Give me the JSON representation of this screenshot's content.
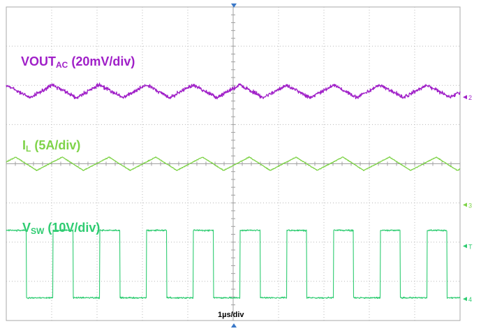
{
  "chart_data": {
    "type": "line",
    "title": "",
    "grid": true,
    "divisions": {
      "x": 10,
      "y": 8
    },
    "time_per_div_us": 1,
    "timebase_label": "1µs/div",
    "switching_period_div": 1.03,
    "series": [
      {
        "name": "VOUT",
        "name_sub": "AC",
        "scale_label": " (20mV/div)",
        "color": "#a020c8",
        "channel": "2",
        "waveform": "ripple_noisy",
        "center_div": 2.15,
        "amplitude_div": 0.16,
        "noise_div": 0.07
      },
      {
        "name": "I",
        "name_sub": "L",
        "scale_label": " (5A/div)",
        "color": "#7ed348",
        "channel": "",
        "waveform": "triangle",
        "center_div": 4.0,
        "amplitude_div": 0.17,
        "noise_div": 0.015
      },
      {
        "name": "V",
        "name_sub": "SW",
        "scale_label": " (10V/div)",
        "color": "#2ecc71",
        "channel": "4",
        "waveform": "square",
        "high_div": 5.7,
        "low_div": 7.42,
        "duty": 0.43,
        "noise_div": 0.03
      }
    ],
    "markers": [
      {
        "label": "2",
        "color": "#a020c8",
        "level_div": 2.3
      },
      {
        "label": "3",
        "color": "#7ed348",
        "level_div": 5.05
      },
      {
        "label": "T",
        "color": "#2ecc71",
        "level_div": 6.1
      },
      {
        "label": "4",
        "color": "#2ecc71",
        "level_div": 7.45
      }
    ]
  }
}
